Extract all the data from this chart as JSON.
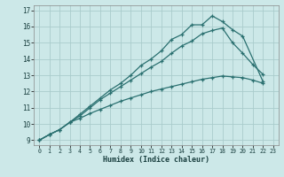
{
  "xlabel": "Humidex (Indice chaleur)",
  "ylabel": "",
  "xlim": [
    -0.5,
    23.5
  ],
  "ylim": [
    8.7,
    17.3
  ],
  "xticks": [
    0,
    1,
    2,
    3,
    4,
    5,
    6,
    7,
    8,
    9,
    10,
    11,
    12,
    13,
    14,
    15,
    16,
    17,
    18,
    19,
    20,
    21,
    22,
    23
  ],
  "yticks": [
    9,
    10,
    11,
    12,
    13,
    14,
    15,
    16,
    17
  ],
  "bg_color": "#cce8e8",
  "grid_color": "#aacccc",
  "line_color": "#2a7070",
  "line1_x": [
    0,
    1,
    2,
    3,
    4,
    5,
    6,
    7,
    8,
    9,
    10,
    11,
    12,
    13,
    14,
    15,
    16,
    17,
    18,
    19,
    20,
    21,
    22
  ],
  "line1_y": [
    9,
    9.35,
    9.65,
    10.1,
    10.35,
    10.65,
    10.9,
    11.15,
    11.4,
    11.6,
    11.8,
    12.0,
    12.15,
    12.3,
    12.45,
    12.6,
    12.75,
    12.85,
    12.95,
    12.9,
    12.85,
    12.7,
    12.5
  ],
  "line2_x": [
    0,
    1,
    2,
    3,
    4,
    5,
    6,
    7,
    8,
    9,
    10,
    11,
    12,
    13,
    14,
    15,
    16,
    17,
    18,
    19,
    20,
    21,
    22
  ],
  "line2_y": [
    9,
    9.35,
    9.65,
    10.1,
    10.5,
    11.0,
    11.5,
    11.9,
    12.3,
    12.7,
    13.1,
    13.5,
    13.85,
    14.35,
    14.8,
    15.1,
    15.55,
    15.75,
    15.9,
    15.0,
    14.35,
    13.65,
    13.05
  ],
  "line3_x": [
    0,
    1,
    2,
    3,
    4,
    5,
    6,
    7,
    8,
    9,
    10,
    11,
    12,
    13,
    14,
    15,
    16,
    17,
    18,
    19,
    20,
    22
  ],
  "line3_y": [
    9,
    9.35,
    9.65,
    10.1,
    10.6,
    11.1,
    11.6,
    12.1,
    12.5,
    13.0,
    13.6,
    14.0,
    14.5,
    15.2,
    15.5,
    16.1,
    16.1,
    16.65,
    16.3,
    15.8,
    15.4,
    12.6
  ]
}
